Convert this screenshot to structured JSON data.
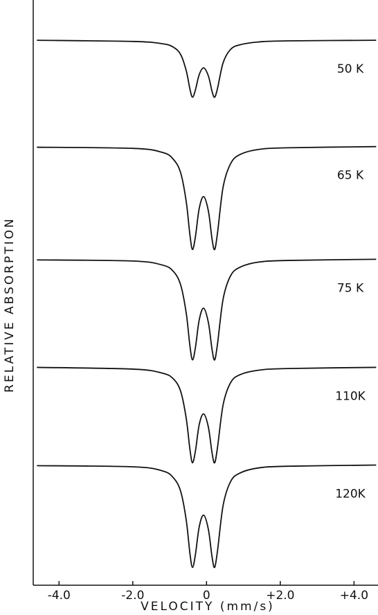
{
  "chart_data": {
    "type": "line",
    "xlabel": "VELOCITY (mm/s)",
    "ylabel": "RELATIVE ABSORPTION",
    "xlim": [
      -4.7,
      4.65
    ],
    "ylim": [
      0,
      100
    ],
    "xticks": [
      {
        "value": -4,
        "label": "-4.0"
      },
      {
        "value": -2,
        "label": "-2.0"
      },
      0,
      {
        "value": 2,
        "label": "+2.0"
      },
      {
        "value": 4,
        "label": "+4.0"
      }
    ],
    "x": [
      -4.6,
      -2,
      -1.2,
      -0.9,
      -0.7,
      -0.55,
      -0.45,
      -0.38,
      -0.3,
      -0.2,
      -0.08,
      0.05,
      0.15,
      0.22,
      0.3,
      0.45,
      0.65,
      0.9,
      1.4,
      2.2,
      4.6
    ],
    "series": [
      {
        "name": "50 K",
        "color": "#111111",
        "values": [
          94.8,
          94.6,
          94.2,
          93.6,
          92.3,
          89.5,
          86.3,
          84.9,
          86.2,
          88.8,
          90.0,
          88.6,
          85.9,
          84.9,
          86.5,
          90.9,
          93.2,
          94.0,
          94.5,
          94.7,
          94.8
        ]
      },
      {
        "name": "65 K",
        "color": "#111111",
        "values": [
          76.2,
          76.0,
          75.3,
          74.1,
          71.7,
          66.7,
          60.9,
          58.4,
          60.7,
          65.5,
          67.6,
          65.1,
          60.2,
          58.4,
          61.4,
          69.3,
          73.3,
          74.9,
          75.8,
          76.1,
          76.3
        ]
      },
      {
        "name": "75 K",
        "color": "#111111",
        "values": [
          56.6,
          56.4,
          55.7,
          54.6,
          52.2,
          47.3,
          41.6,
          39.2,
          41.4,
          46.1,
          48.2,
          45.7,
          41.0,
          39.2,
          42.1,
          49.8,
          53.8,
          55.3,
          56.2,
          56.5,
          56.7
        ]
      },
      {
        "name": "110K",
        "color": "#111111",
        "values": [
          37.9,
          37.6,
          36.9,
          35.9,
          33.7,
          29.0,
          23.6,
          21.3,
          23.4,
          27.9,
          29.8,
          27.5,
          23.0,
          21.3,
          24.1,
          31.4,
          35.2,
          36.6,
          37.4,
          37.7,
          37.9
        ]
      },
      {
        "name": "120K",
        "color": "#111111",
        "values": [
          20.8,
          20.6,
          19.9,
          18.7,
          16.3,
          11.3,
          5.5,
          3.1,
          5.4,
          10.1,
          12.2,
          9.7,
          4.9,
          3.1,
          6.1,
          13.9,
          18.0,
          19.5,
          20.4,
          20.7,
          20.9
        ]
      }
    ]
  }
}
